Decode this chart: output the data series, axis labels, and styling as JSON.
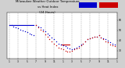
{
  "title_line1": "Milwaukee Weather Outdoor Temperature",
  "title_line2": "vs Heat Index",
  "title_line3": "(24 Hours)",
  "bg_color": "#d0d0d0",
  "plot_bg_color": "#ffffff",
  "temp_color": "#0000cc",
  "heat_color": "#cc0000",
  "grid_color": "#aaaaaa",
  "marker_size": 1.0,
  "temp_x": [
    0,
    1,
    2,
    3,
    4,
    5,
    6,
    7,
    8,
    9,
    10,
    11,
    12,
    13,
    14,
    15,
    16,
    17,
    18,
    19,
    20,
    21,
    22,
    23,
    24,
    25,
    26,
    27,
    28,
    29,
    30,
    31,
    32,
    33,
    34,
    35,
    36,
    37,
    38,
    39,
    40,
    41,
    42,
    43,
    44,
    45,
    46,
    47
  ],
  "temp_y": [
    55,
    55,
    54,
    53,
    52,
    51,
    50,
    49,
    48,
    47,
    46,
    45,
    55,
    54,
    53,
    51,
    49,
    47,
    45,
    43,
    41,
    39,
    37,
    36,
    35,
    34,
    33,
    32,
    31,
    32,
    33,
    34,
    36,
    37,
    39,
    41,
    42,
    43,
    44,
    44,
    45,
    43,
    42,
    41,
    40,
    38,
    37,
    36
  ],
  "heat_x": [
    12,
    13,
    14,
    15,
    16,
    17,
    18,
    19,
    20,
    21,
    22,
    23,
    24,
    25,
    26,
    27,
    28,
    29,
    30,
    31,
    32,
    33,
    34,
    35,
    36,
    37,
    38,
    39,
    40,
    41,
    42,
    43,
    44,
    45,
    46,
    47
  ],
  "heat_y": [
    55,
    53,
    51,
    49,
    46,
    44,
    41,
    39,
    37,
    35,
    33,
    32,
    31,
    30,
    29,
    29,
    30,
    31,
    32,
    33,
    35,
    37,
    39,
    41,
    42,
    43,
    44,
    44,
    45,
    43,
    41,
    39,
    38,
    36,
    35,
    34
  ],
  "temp_line_x": [
    0,
    11
  ],
  "temp_line_y": [
    55,
    55
  ],
  "heat_line_x": [
    23,
    27
  ],
  "heat_line_y": [
    36,
    36
  ],
  "xlim": [
    -1,
    48
  ],
  "ylim": [
    22,
    68
  ],
  "y_ticks": [
    30,
    40,
    50,
    60
  ],
  "y_tick_labels": [
    "30",
    "40",
    "50",
    "60"
  ],
  "x_tick_positions": [
    0,
    4,
    8,
    12,
    16,
    20,
    24,
    28,
    32,
    36,
    40,
    44,
    48
  ],
  "x_tick_labels": [
    "1",
    "3",
    "5",
    "7",
    "9",
    "11",
    "1",
    "3",
    "5",
    "7",
    "9",
    "11",
    "1"
  ]
}
